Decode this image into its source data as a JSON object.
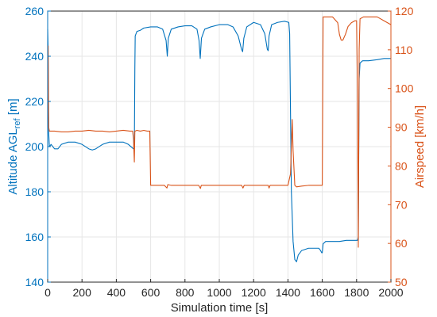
{
  "chart_data": {
    "type": "line",
    "title": "",
    "xlabel": "Simulation time [s]",
    "ylabel_left": {
      "main": "Altitude AGL",
      "sub": "ref",
      "unit": " [m]"
    },
    "ylabel_right": "Airspeed [km/h]",
    "xlim": [
      0,
      2000
    ],
    "ylim_left": [
      140,
      260
    ],
    "ylim_right": [
      50,
      120
    ],
    "x_ticks": [
      0,
      200,
      400,
      600,
      800,
      1000,
      1200,
      1400,
      1600,
      1800,
      2000
    ],
    "y_ticks_left": [
      140,
      160,
      180,
      200,
      220,
      240,
      260
    ],
    "y_ticks_right": [
      50,
      60,
      70,
      80,
      90,
      100,
      110,
      120
    ],
    "grid": true,
    "legend": "none",
    "colors": {
      "left": "#0072BD",
      "right": "#D95319",
      "grid": "#e6e6e6",
      "axis": "#262626"
    },
    "series": [
      {
        "axis": "left",
        "values": [
          [
            0,
            252
          ],
          [
            2,
            245
          ],
          [
            4,
            218
          ],
          [
            6,
            206
          ],
          [
            10,
            200
          ],
          [
            20,
            201
          ],
          [
            40,
            199
          ],
          [
            60,
            199
          ],
          [
            80,
            201
          ],
          [
            120,
            202
          ],
          [
            160,
            202
          ],
          [
            200,
            201
          ],
          [
            240,
            199
          ],
          [
            260,
            198.5
          ],
          [
            280,
            199
          ],
          [
            320,
            201
          ],
          [
            360,
            202
          ],
          [
            400,
            202
          ],
          [
            440,
            202
          ],
          [
            470,
            201
          ],
          [
            500,
            199
          ],
          [
            505,
            199
          ],
          [
            508,
            235
          ],
          [
            510,
            249
          ],
          [
            520,
            251
          ],
          [
            540,
            251.5
          ],
          [
            560,
            252.5
          ],
          [
            600,
            253
          ],
          [
            640,
            253
          ],
          [
            670,
            252
          ],
          [
            690,
            247
          ],
          [
            697,
            240
          ],
          [
            703,
            248
          ],
          [
            720,
            252
          ],
          [
            760,
            253
          ],
          [
            800,
            253.5
          ],
          [
            840,
            253.5
          ],
          [
            870,
            252
          ],
          [
            882,
            247
          ],
          [
            889,
            239
          ],
          [
            896,
            248
          ],
          [
            915,
            252
          ],
          [
            950,
            253
          ],
          [
            1000,
            254
          ],
          [
            1050,
            254
          ],
          [
            1080,
            253
          ],
          [
            1110,
            249
          ],
          [
            1130,
            243
          ],
          [
            1136,
            242
          ],
          [
            1143,
            248
          ],
          [
            1160,
            253
          ],
          [
            1200,
            255
          ],
          [
            1240,
            254
          ],
          [
            1265,
            250
          ],
          [
            1280,
            243
          ],
          [
            1285,
            242.5
          ],
          [
            1290,
            249
          ],
          [
            1305,
            254
          ],
          [
            1340,
            255
          ],
          [
            1380,
            255.5
          ],
          [
            1405,
            255
          ],
          [
            1410,
            250
          ],
          [
            1420,
            180
          ],
          [
            1430,
            158
          ],
          [
            1440,
            150
          ],
          [
            1450,
            149
          ],
          [
            1460,
            152
          ],
          [
            1480,
            154
          ],
          [
            1520,
            155
          ],
          [
            1560,
            155
          ],
          [
            1580,
            155
          ],
          [
            1590,
            154
          ],
          [
            1597,
            153
          ],
          [
            1600,
            153
          ],
          [
            1605,
            157
          ],
          [
            1620,
            158
          ],
          [
            1660,
            158
          ],
          [
            1700,
            158
          ],
          [
            1740,
            158.5
          ],
          [
            1780,
            158.5
          ],
          [
            1805,
            158.5
          ],
          [
            1810,
            160
          ],
          [
            1815,
            230
          ],
          [
            1820,
            237
          ],
          [
            1835,
            238
          ],
          [
            1870,
            238
          ],
          [
            1920,
            238.5
          ],
          [
            1960,
            239
          ],
          [
            2000,
            239
          ]
        ]
      },
      {
        "axis": "right",
        "values": [
          [
            0,
            97
          ],
          [
            3,
            111
          ],
          [
            6,
            90
          ],
          [
            10,
            89
          ],
          [
            40,
            89
          ],
          [
            80,
            88.8
          ],
          [
            120,
            88.8
          ],
          [
            160,
            89
          ],
          [
            200,
            89
          ],
          [
            240,
            89.2
          ],
          [
            280,
            89
          ],
          [
            320,
            89
          ],
          [
            360,
            88.8
          ],
          [
            400,
            89
          ],
          [
            440,
            89.2
          ],
          [
            480,
            89
          ],
          [
            495,
            89
          ],
          [
            500,
            87
          ],
          [
            505,
            81
          ],
          [
            508,
            89
          ],
          [
            520,
            89.2
          ],
          [
            540,
            89
          ],
          [
            560,
            89.2
          ],
          [
            580,
            89
          ],
          [
            595,
            89
          ],
          [
            600,
            75
          ],
          [
            640,
            75
          ],
          [
            680,
            75
          ],
          [
            695,
            74.3
          ],
          [
            700,
            75.2
          ],
          [
            720,
            75
          ],
          [
            760,
            75
          ],
          [
            800,
            75
          ],
          [
            840,
            75
          ],
          [
            880,
            75
          ],
          [
            890,
            74.2
          ],
          [
            895,
            75
          ],
          [
            940,
            75
          ],
          [
            1000,
            75
          ],
          [
            1040,
            75
          ],
          [
            1080,
            75
          ],
          [
            1130,
            75
          ],
          [
            1138,
            74.3
          ],
          [
            1145,
            75
          ],
          [
            1200,
            75
          ],
          [
            1250,
            75
          ],
          [
            1285,
            75
          ],
          [
            1290,
            74.3
          ],
          [
            1296,
            75
          ],
          [
            1340,
            75
          ],
          [
            1380,
            75
          ],
          [
            1400,
            75
          ],
          [
            1415,
            78
          ],
          [
            1425,
            92
          ],
          [
            1430,
            84
          ],
          [
            1440,
            75
          ],
          [
            1450,
            74.6
          ],
          [
            1480,
            74.8
          ],
          [
            1520,
            75
          ],
          [
            1560,
            75
          ],
          [
            1600,
            75
          ],
          [
            1605,
            118.5
          ],
          [
            1630,
            118.5
          ],
          [
            1660,
            118.5
          ],
          [
            1690,
            117
          ],
          [
            1700,
            114
          ],
          [
            1710,
            112.5
          ],
          [
            1720,
            112.5
          ],
          [
            1735,
            114
          ],
          [
            1750,
            116
          ],
          [
            1770,
            117
          ],
          [
            1790,
            117.5
          ],
          [
            1800,
            117.5
          ],
          [
            1805,
            100
          ],
          [
            1810,
            59
          ],
          [
            1815,
            110
          ],
          [
            1820,
            118
          ],
          [
            1840,
            118.5
          ],
          [
            1880,
            118.5
          ],
          [
            1920,
            118.5
          ],
          [
            1960,
            117.5
          ],
          [
            2000,
            116.5
          ]
        ]
      }
    ]
  }
}
